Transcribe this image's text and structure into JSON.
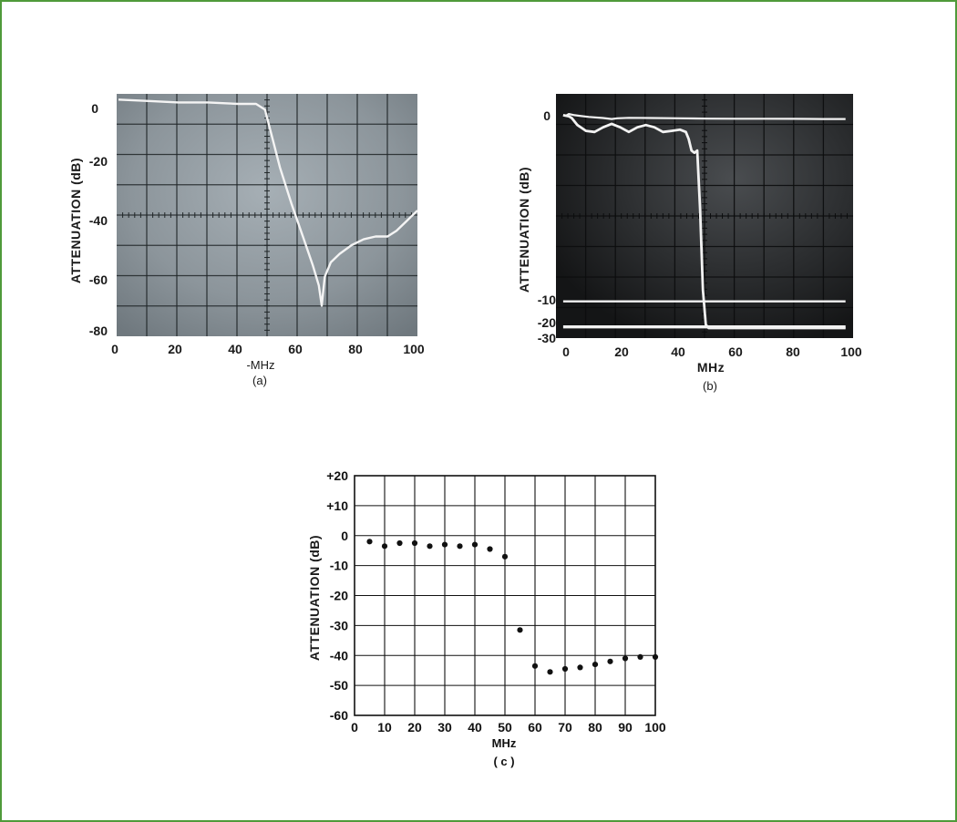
{
  "colors": {
    "frame_border": "#4f9a3a",
    "screen_a": "#8a949b",
    "screen_b": "#2a2c2e",
    "trace": "#f4f4f4",
    "grid_paper": "#111111"
  },
  "chart_data": [
    {
      "id": "a",
      "type": "line",
      "caption": "(a)",
      "xlabel": "-MHz",
      "ylabel": "ATTENUATION  (dB)",
      "xlim": [
        0,
        100
      ],
      "ylim": [
        -80,
        0
      ],
      "xticks": [
        "0",
        "20",
        "40",
        "60",
        "80",
        "100"
      ],
      "yticks": [
        "0",
        "-20",
        "-40",
        "-60",
        "-80"
      ],
      "grid": true,
      "series": [
        {
          "x": [
            0,
            10,
            20,
            30,
            40,
            46,
            49,
            51,
            54,
            58,
            62,
            65,
            67,
            68,
            69,
            71,
            74,
            78,
            82,
            86,
            90,
            93,
            96,
            99,
            100
          ],
          "y": [
            1.5,
            1.0,
            0.5,
            0.5,
            0.0,
            0.0,
            -2,
            -10,
            -22,
            -35,
            -47,
            -56,
            -63,
            -70,
            -60,
            -55,
            -52,
            -49,
            -47,
            -46,
            -46,
            -44,
            -41,
            -38,
            -37
          ]
        }
      ]
    },
    {
      "id": "b",
      "type": "line",
      "caption": "(b)",
      "xlabel": "MHz",
      "ylabel": "ATTENUATION  (dB)",
      "xlim": [
        0,
        100
      ],
      "yticks": [
        "0",
        "-10",
        "-20",
        "-30"
      ],
      "xticks": [
        "0",
        "20",
        "40",
        "60",
        "80",
        "100"
      ],
      "grid": true,
      "series": [
        {
          "x": [
            -1,
            0,
            1,
            3,
            8,
            13,
            16,
            18,
            22,
            30,
            40,
            50,
            60,
            70,
            80,
            90,
            98
          ],
          "y": [
            0.5,
            0.0,
            1.5,
            0.5,
            -1.0,
            -2.0,
            -2.8,
            -2.2,
            -1.8,
            -2.0,
            -2.2,
            -2.5,
            -2.6,
            -2.6,
            -2.7,
            -2.8,
            -2.8
          ]
        },
        {
          "x": [
            -1,
            0,
            1,
            2,
            4,
            7,
            10,
            13,
            16,
            19,
            22,
            25,
            28,
            31,
            34,
            37,
            40,
            42,
            43,
            44,
            45,
            46,
            47,
            48,
            49,
            50,
            60,
            80,
            98
          ],
          "y": [
            0.5,
            0.0,
            -0.5,
            -2,
            -8,
            -13,
            -14,
            -10,
            -7,
            -10,
            -14,
            -10,
            -8,
            -10,
            -14,
            -13,
            -12,
            -14,
            -20,
            -30,
            -32,
            -30,
            -80,
            -150,
            -180,
            -183,
            -183,
            -183,
            -183
          ]
        },
        {
          "x": [
            -1,
            10,
            30,
            50,
            70,
            98
          ],
          "y": [
            -160,
            -160,
            -160,
            -160,
            -160,
            -160
          ]
        },
        {
          "x": [
            -1,
            20,
            50,
            80,
            98
          ],
          "y": [
            -182,
            -182,
            -182,
            -182,
            -182
          ]
        }
      ]
    },
    {
      "id": "c",
      "type": "scatter",
      "caption": "( c )",
      "xlabel": "MHz",
      "ylabel": "ATTENUATION (dB)",
      "xlim": [
        0,
        100
      ],
      "ylim": [
        -60,
        20
      ],
      "xticks": [
        "0",
        "10",
        "20",
        "30",
        "40",
        "50",
        "60",
        "70",
        "80",
        "90",
        "100"
      ],
      "yticks": [
        "+20",
        "+10",
        "0",
        "-10",
        "-20",
        "-30",
        "-40",
        "-50",
        "-60"
      ],
      "grid": true,
      "series": [
        {
          "x": [
            5,
            10,
            15,
            20,
            25,
            30,
            35,
            40,
            45,
            50,
            55,
            60,
            65,
            70,
            75,
            80,
            85,
            90,
            95,
            100
          ],
          "y": [
            -2,
            -3.5,
            -2.5,
            -2.5,
            -3.5,
            -3,
            -3.5,
            -3,
            -4.5,
            -7,
            -31.5,
            -43.5,
            -45.5,
            -44.5,
            -44,
            -43,
            -42,
            -41,
            -40.5,
            -40.5
          ]
        }
      ]
    }
  ]
}
